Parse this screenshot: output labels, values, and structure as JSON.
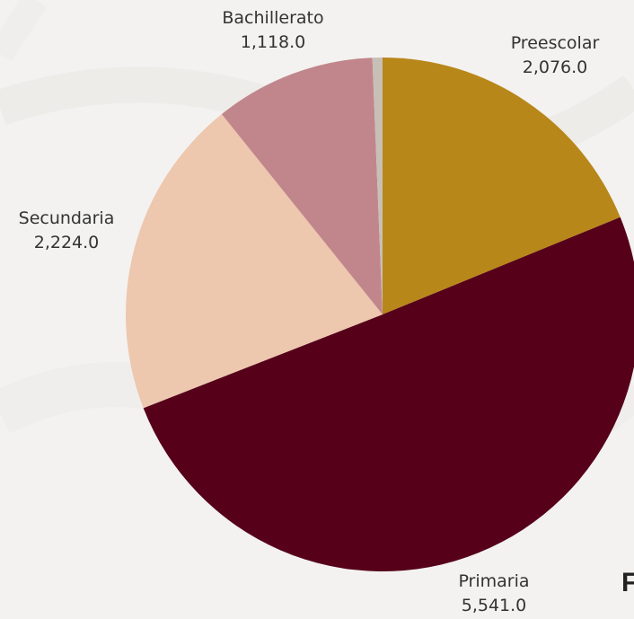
{
  "chart_data": {
    "type": "pie",
    "title": "",
    "slices": [
      {
        "label": "Preescolar",
        "value": 2076.0,
        "value_text": "2,076.0",
        "color": "#b8871a"
      },
      {
        "label": "Primaria",
        "value": 5541.0,
        "value_text": "5,541.0",
        "color": "#56001a"
      },
      {
        "label": "Secundaria",
        "value": 2224.0,
        "value_text": "2,224.0",
        "color": "#edc7ae"
      },
      {
        "label": "Bachillerato",
        "value": 1118.0,
        "value_text": "1,118.0",
        "color": "#c1868c"
      },
      {
        "label": "",
        "value": 70.0,
        "value_text": "",
        "color": "#c8bfb6"
      }
    ],
    "start_angle": "12 o'clock",
    "direction": "clockwise",
    "legend": "none"
  },
  "overflow_text": "F"
}
